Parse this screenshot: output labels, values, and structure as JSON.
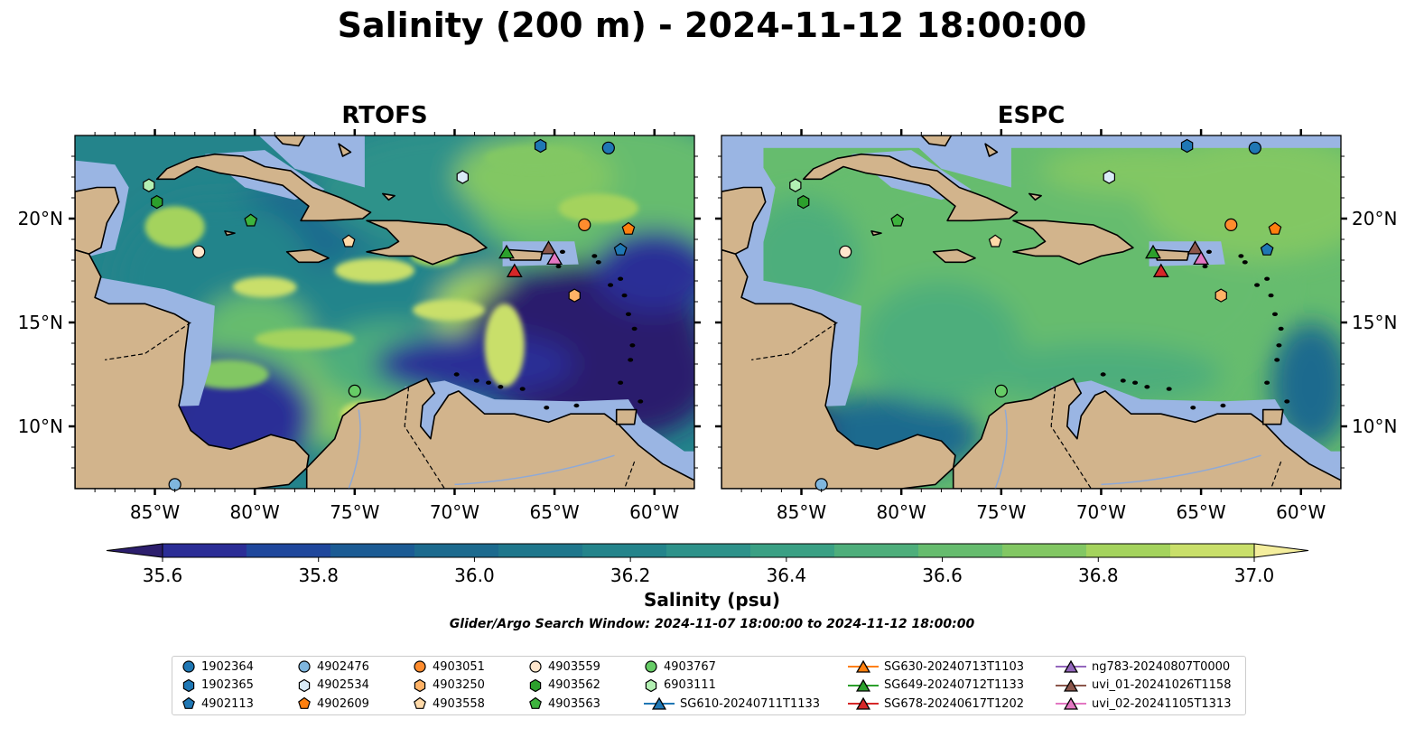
{
  "title": "Salinity (200 m) - 2024-11-12 18:00:00",
  "panels": [
    {
      "title": "RTOFS"
    },
    {
      "title": "ESPC"
    }
  ],
  "axes": {
    "lon_ticks": [
      "85°W",
      "80°W",
      "75°W",
      "70°W",
      "65°W",
      "60°W"
    ],
    "lat_ticks": [
      "20°N",
      "15°N",
      "10°N"
    ],
    "lon_range": [
      -89,
      -58
    ],
    "lat_range": [
      7,
      24
    ]
  },
  "colorbar": {
    "label": "Salinity (psu)",
    "ticks": [
      "35.6",
      "35.8",
      "36.0",
      "36.2",
      "36.4",
      "36.6",
      "36.8",
      "37.0"
    ],
    "vmin": 35.6,
    "vmax": 37.0,
    "colors": [
      "#2c1e6d",
      "#2b2d96",
      "#1f479c",
      "#1b5b94",
      "#1c6a8e",
      "#1f778c",
      "#24848b",
      "#2e928a",
      "#3aa084",
      "#4eae7b",
      "#66bc6e",
      "#82c763",
      "#a4d35d",
      "#c9df6a",
      "#f4ee9d"
    ],
    "land_color": "#d2b48c",
    "shelf_color": "#9ab5e3"
  },
  "search_window": "Glider/Argo Search Window: 2024-11-07 18:00:00 to 2024-11-12 18:00:00",
  "legend": [
    {
      "label": "1902364",
      "marker": "circle",
      "color": "#1f77b4"
    },
    {
      "label": "1902365",
      "marker": "hexagon",
      "color": "#1f77b4"
    },
    {
      "label": "4902113",
      "marker": "pentagon",
      "color": "#1f77b4"
    },
    {
      "label": "4902476",
      "marker": "circle",
      "color": "#7fb6de"
    },
    {
      "label": "4902534",
      "marker": "hexagon",
      "color": "#d9ebf7"
    },
    {
      "label": "4902609",
      "marker": "pentagon",
      "color": "#ff7f0e"
    },
    {
      "label": "4903051",
      "marker": "circle",
      "color": "#ff8c2e"
    },
    {
      "label": "4903250",
      "marker": "hexagon",
      "color": "#ffb266"
    },
    {
      "label": "4903558",
      "marker": "pentagon",
      "color": "#ffd9a8"
    },
    {
      "label": "4903559",
      "marker": "circle",
      "color": "#ffe6cc"
    },
    {
      "label": "4903562",
      "marker": "hexagon",
      "color": "#2ca02c"
    },
    {
      "label": "4903563",
      "marker": "pentagon",
      "color": "#3db33d"
    },
    {
      "label": "4903767",
      "marker": "circle",
      "color": "#66cc66"
    },
    {
      "label": "6903111",
      "marker": "hexagon",
      "color": "#b3f0b3"
    },
    {
      "label": "SG610-20240711T1133",
      "marker": "triangle",
      "color": "#1f77b4"
    },
    {
      "label": "SG630-20240713T1103",
      "marker": "triangle",
      "color": "#ff7f0e"
    },
    {
      "label": "SG649-20240712T1133",
      "marker": "triangle",
      "color": "#2ca02c"
    },
    {
      "label": "SG678-20240617T1202",
      "marker": "triangle",
      "color": "#d62728"
    },
    {
      "label": "ng783-20240807T0000",
      "marker": "triangle",
      "color": "#9467bd"
    },
    {
      "label": "uvi_01-20241026T1158",
      "marker": "triangle",
      "color": "#8c564b"
    },
    {
      "label": "uvi_02-20241105T1313",
      "marker": "triangle",
      "color": "#e377c2"
    }
  ],
  "platforms": [
    {
      "id": "1902364",
      "lon": -62.3,
      "lat": 23.4
    },
    {
      "id": "1902365",
      "lon": -65.7,
      "lat": 23.5
    },
    {
      "id": "4902113",
      "lon": -61.7,
      "lat": 18.5
    },
    {
      "id": "4902476",
      "lon": -84.0,
      "lat": 7.2
    },
    {
      "id": "4902534",
      "lon": -69.6,
      "lat": 22.0
    },
    {
      "id": "4902609",
      "lon": -61.3,
      "lat": 19.5
    },
    {
      "id": "4903051",
      "lon": -63.5,
      "lat": 19.7
    },
    {
      "id": "4903250",
      "lon": -64.0,
      "lat": 16.3
    },
    {
      "id": "4903558",
      "lon": -75.3,
      "lat": 18.9
    },
    {
      "id": "4903559",
      "lon": -82.8,
      "lat": 18.4
    },
    {
      "id": "4903562",
      "lon": -84.9,
      "lat": 20.8
    },
    {
      "id": "4903563",
      "lon": -80.2,
      "lat": 19.9
    },
    {
      "id": "4903767",
      "lon": -75.0,
      "lat": 11.7
    },
    {
      "id": "6903111",
      "lon": -85.3,
      "lat": 21.6
    },
    {
      "id": "SG649-20240712T1133",
      "lon": -67.4,
      "lat": 18.4
    },
    {
      "id": "SG678-20240617T1202",
      "lon": -67.0,
      "lat": 17.5
    },
    {
      "id": "uvi_01-20241026T1158",
      "lon": -65.3,
      "lat": 18.6
    },
    {
      "id": "uvi_02-20241105T1313",
      "lon": -65.0,
      "lat": 18.1
    }
  ]
}
